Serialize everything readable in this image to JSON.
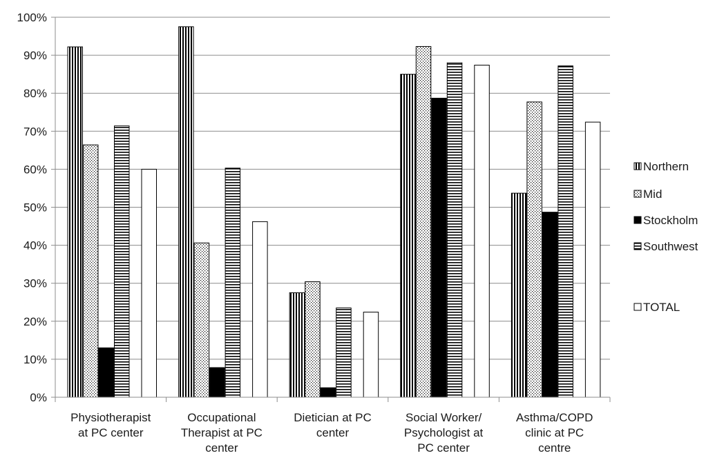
{
  "chart_data": {
    "type": "bar",
    "title": "",
    "xlabel": "",
    "ylabel": "",
    "ylim": [
      0,
      100
    ],
    "y_ticks": [
      "0%",
      "10%",
      "20%",
      "30%",
      "40%",
      "50%",
      "60%",
      "70%",
      "80%",
      "90%",
      "100%"
    ],
    "grid": true,
    "legend_position": "right",
    "categories": [
      [
        "Physiotherapist",
        "at PC center"
      ],
      [
        "Occupational",
        "Therapist at PC",
        "center"
      ],
      [
        "Dietician at PC",
        "center"
      ],
      [
        "Social Worker/",
        "Psychologist at",
        "PC center"
      ],
      [
        "Asthma/COPD",
        "clinic at PC",
        "centre"
      ]
    ],
    "series": [
      {
        "name": "Northern",
        "pattern": "vertical-stripes",
        "values": [
          92.2,
          97.5,
          27.5,
          85.0,
          53.7
        ]
      },
      {
        "name": "Mid",
        "pattern": "dots",
        "values": [
          66.4,
          40.6,
          30.4,
          92.3,
          77.7
        ]
      },
      {
        "name": "Stockholm",
        "pattern": "solid-black",
        "values": [
          13.0,
          7.8,
          2.5,
          78.7,
          48.7
        ]
      },
      {
        "name": "Southwest",
        "pattern": "horizontal-stripes",
        "values": [
          71.4,
          60.3,
          23.5,
          88.0,
          87.2
        ]
      },
      {
        "name": "TOTAL",
        "pattern": "white",
        "values": [
          60.0,
          46.2,
          22.4,
          87.4,
          72.4
        ]
      }
    ],
    "colors": {
      "stroke": "#000000",
      "fill_solid": "#000000",
      "fill_white": "#ffffff",
      "grid": "#8c8c8c"
    }
  }
}
